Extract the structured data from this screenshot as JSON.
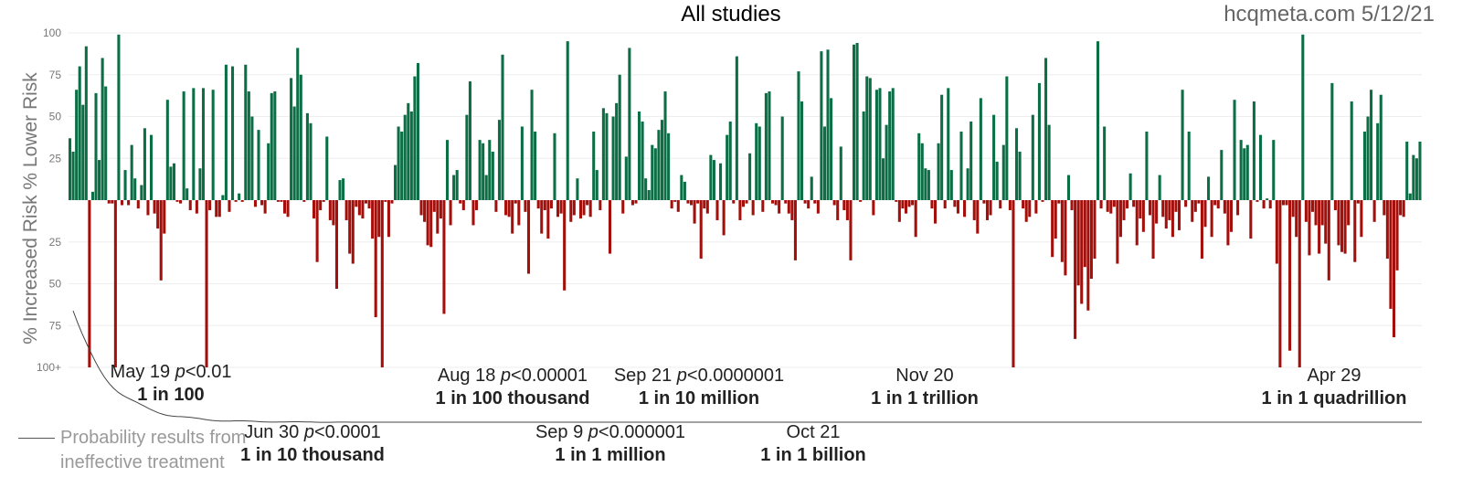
{
  "title": "All studies",
  "source": "hcqmeta.com 5/12/21",
  "ylabel": "% Increased Risk % Lower Risk",
  "legend": {
    "line1": "Probability results from",
    "line2": "ineffective treatment"
  },
  "annotations": [
    {
      "date": "May 19",
      "p": "p<0.01",
      "odds": "1 in 100",
      "row": "upper"
    },
    {
      "date": "Jun 30",
      "p": "p<0.0001",
      "odds": "1 in 10 thousand",
      "row": "lower"
    },
    {
      "date": "Aug 18",
      "p": "p<0.00001",
      "odds": "1 in 100 thousand",
      "row": "upper"
    },
    {
      "date": "Sep 9",
      "p": "p<0.000001",
      "odds": "1 in 1 million",
      "row": "lower"
    },
    {
      "date": "Sep 21",
      "p": "p<0.0000001",
      "odds": "1 in 10 million",
      "row": "upper"
    },
    {
      "date": "Oct 21",
      "p": "",
      "odds": "1 in 1 billion",
      "row": "lower"
    },
    {
      "date": "Nov 20",
      "p": "",
      "odds": "1 in 1 trillion",
      "row": "upper"
    },
    {
      "date": "Apr 29",
      "p": "",
      "odds": "1 in 1 quadrillion",
      "row": "upper"
    }
  ],
  "chart_data": {
    "type": "bar",
    "title": "All studies",
    "ylabel": "% Increased Risk % Lower Risk",
    "y_ticks_upper": [
      "25",
      "50",
      "75",
      "100"
    ],
    "y_ticks_lower": [
      "25",
      "50",
      "75",
      "100+"
    ],
    "ylim": [
      -100,
      100
    ],
    "colors": {
      "positive": "#0b6e45",
      "negative": "#a30f0b",
      "curve": "#444444"
    },
    "note": "Each bar is one study ordered by publication date; positive = % lower risk, negative = % increased risk (clipped at 100+).",
    "values": [
      37,
      29,
      66,
      80,
      57,
      92,
      -100,
      5,
      64,
      24,
      85,
      68,
      -2,
      -2,
      -100,
      99,
      -3,
      18,
      -3,
      33,
      13,
      -5,
      9,
      43,
      -9,
      39,
      -8,
      -17,
      -48,
      -20,
      60,
      20,
      22,
      -1,
      -2,
      65,
      7,
      -6,
      67,
      -8,
      19,
      67,
      -100,
      -6,
      66,
      -10,
      -10,
      3,
      81,
      -7,
      80,
      -1,
      4,
      -1,
      81,
      65,
      50,
      -4,
      42,
      -3,
      -8,
      34,
      64,
      65,
      -1,
      -1,
      -8,
      -10,
      73,
      56,
      91,
      75,
      -1,
      52,
      46,
      -11,
      -37,
      -6,
      -1,
      38,
      -12,
      -15,
      -53,
      12,
      13,
      -12,
      -32,
      -38,
      -4,
      -9,
      -11,
      -2,
      -5,
      -23,
      -70,
      -22,
      -100,
      -1,
      -22,
      -2,
      21,
      44,
      41,
      51,
      58,
      53,
      74,
      82,
      -9,
      -13,
      -27,
      -28,
      -7,
      -20,
      -11,
      -68,
      36,
      -15,
      15,
      18,
      -2,
      -6,
      51,
      71,
      -15,
      -6,
      36,
      34,
      15,
      36,
      29,
      -7,
      48,
      87,
      -9,
      -10,
      -20,
      -2,
      -15,
      44,
      -7,
      -44,
      66,
      41,
      -5,
      -20,
      -6,
      -23,
      -5,
      40,
      -10,
      -8,
      -54,
      95,
      -13,
      -9,
      13,
      -11,
      -9,
      -3,
      -10,
      41,
      18,
      -6,
      55,
      52,
      -32,
      50,
      58,
      75,
      -8,
      26,
      91,
      -3,
      -2,
      53,
      47,
      13,
      6,
      33,
      31,
      42,
      48,
      65,
      40,
      -5,
      -1,
      -7,
      15,
      11,
      -2,
      -3,
      -14,
      -2,
      -35,
      -5,
      -8,
      27,
      24,
      -12,
      22,
      -21,
      39,
      47,
      -2,
      86,
      -12,
      -4,
      -2,
      28,
      -9,
      46,
      44,
      -7,
      64,
      65,
      -2,
      -3,
      -8,
      50,
      -2,
      -8,
      -12,
      -36,
      77,
      59,
      -2,
      -5,
      14,
      -2,
      -8,
      89,
      44,
      90,
      61,
      -3,
      -12,
      32,
      -6,
      -12,
      -36,
      93,
      94,
      -1,
      53,
      74,
      73,
      -9,
      66,
      67,
      25,
      45,
      65,
      67,
      -1,
      -13,
      -5,
      -8,
      -4,
      -3,
      -22,
      40,
      34,
      19,
      18,
      -5,
      -14,
      34,
      63,
      -5,
      67,
      18,
      -4,
      -8,
      41,
      -10,
      19,
      47,
      -12,
      -20,
      61,
      -2,
      -12,
      -9,
      51,
      23,
      -5,
      33,
      74,
      -6,
      -100,
      43,
      29,
      -5,
      -13,
      -10,
      51,
      -8,
      70,
      -1,
      85,
      45,
      -34,
      -23,
      -2,
      -37,
      -45,
      15,
      -6,
      -83,
      -51,
      -62,
      -40,
      -66,
      -47,
      -35,
      95,
      -5,
      44,
      -7,
      -8,
      -4,
      -38,
      -22,
      -12,
      -5,
      16,
      -4,
      -27,
      -11,
      -19,
      41,
      -9,
      -35,
      -14,
      15,
      -10,
      -17,
      -12,
      -22,
      -7,
      -18,
      66,
      -4,
      41,
      -13,
      -7,
      -2,
      -35,
      -16,
      14,
      -22,
      -3,
      -5,
      30,
      -8,
      -27,
      -19,
      60,
      -9,
      36,
      31,
      33,
      -23,
      59,
      -1,
      39,
      -5,
      1,
      -5,
      36,
      -38,
      -100,
      -3,
      -3,
      -90,
      -10,
      -22,
      -100,
      99,
      -13,
      -33,
      -7,
      -15,
      -32,
      -15,
      -26,
      -48,
      70,
      -6,
      -27,
      -31,
      -32,
      -15,
      59,
      -37,
      -2,
      -22,
      41,
      50,
      66,
      -13,
      46,
      63,
      -9,
      -35,
      -65,
      -82,
      -42,
      -9,
      -10,
      35,
      4,
      27,
      25,
      35
    ]
  }
}
